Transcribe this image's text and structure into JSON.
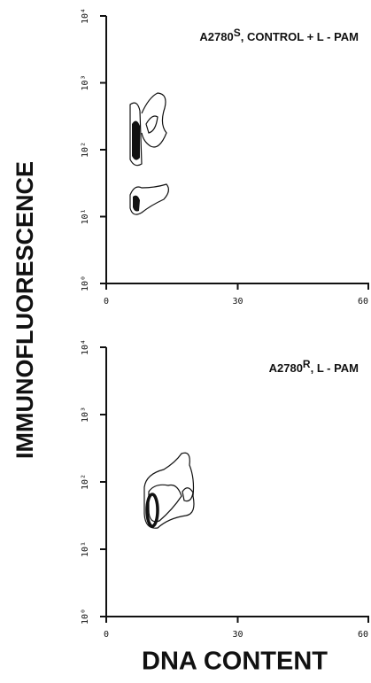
{
  "figure": {
    "ylabel": "IMMUNOFLUORESCENCE",
    "xlabel": "DNA CONTENT"
  },
  "chart_data": [
    {
      "type": "contour",
      "title": {
        "base": "A2780",
        "sup": "S",
        "rest": ", CONTROL + L - PAM"
      },
      "xlim": [
        0,
        60
      ],
      "xticks": [
        0,
        30,
        60
      ],
      "ylim": [
        1,
        10000
      ],
      "log_y": true,
      "yticks": [
        {
          "value": 1,
          "label": "10⁰"
        },
        {
          "value": 10,
          "label": "10¹"
        },
        {
          "value": 100,
          "label": "10²"
        },
        {
          "value": 1000,
          "label": "10³"
        },
        {
          "value": 10000,
          "label": "10⁴"
        }
      ]
    },
    {
      "type": "contour",
      "title": {
        "base": "A2780",
        "sup": "R",
        "rest": ", L - PAM"
      },
      "xlim": [
        0,
        60
      ],
      "xticks": [
        0,
        30,
        60
      ],
      "ylim": [
        1,
        10000
      ],
      "log_y": true,
      "yticks": [
        {
          "value": 1,
          "label": "10⁰"
        },
        {
          "value": 10,
          "label": "10¹"
        },
        {
          "value": 100,
          "label": "10²"
        },
        {
          "value": 1000,
          "label": "10³"
        },
        {
          "value": 10000,
          "label": "10⁴"
        }
      ]
    }
  ]
}
